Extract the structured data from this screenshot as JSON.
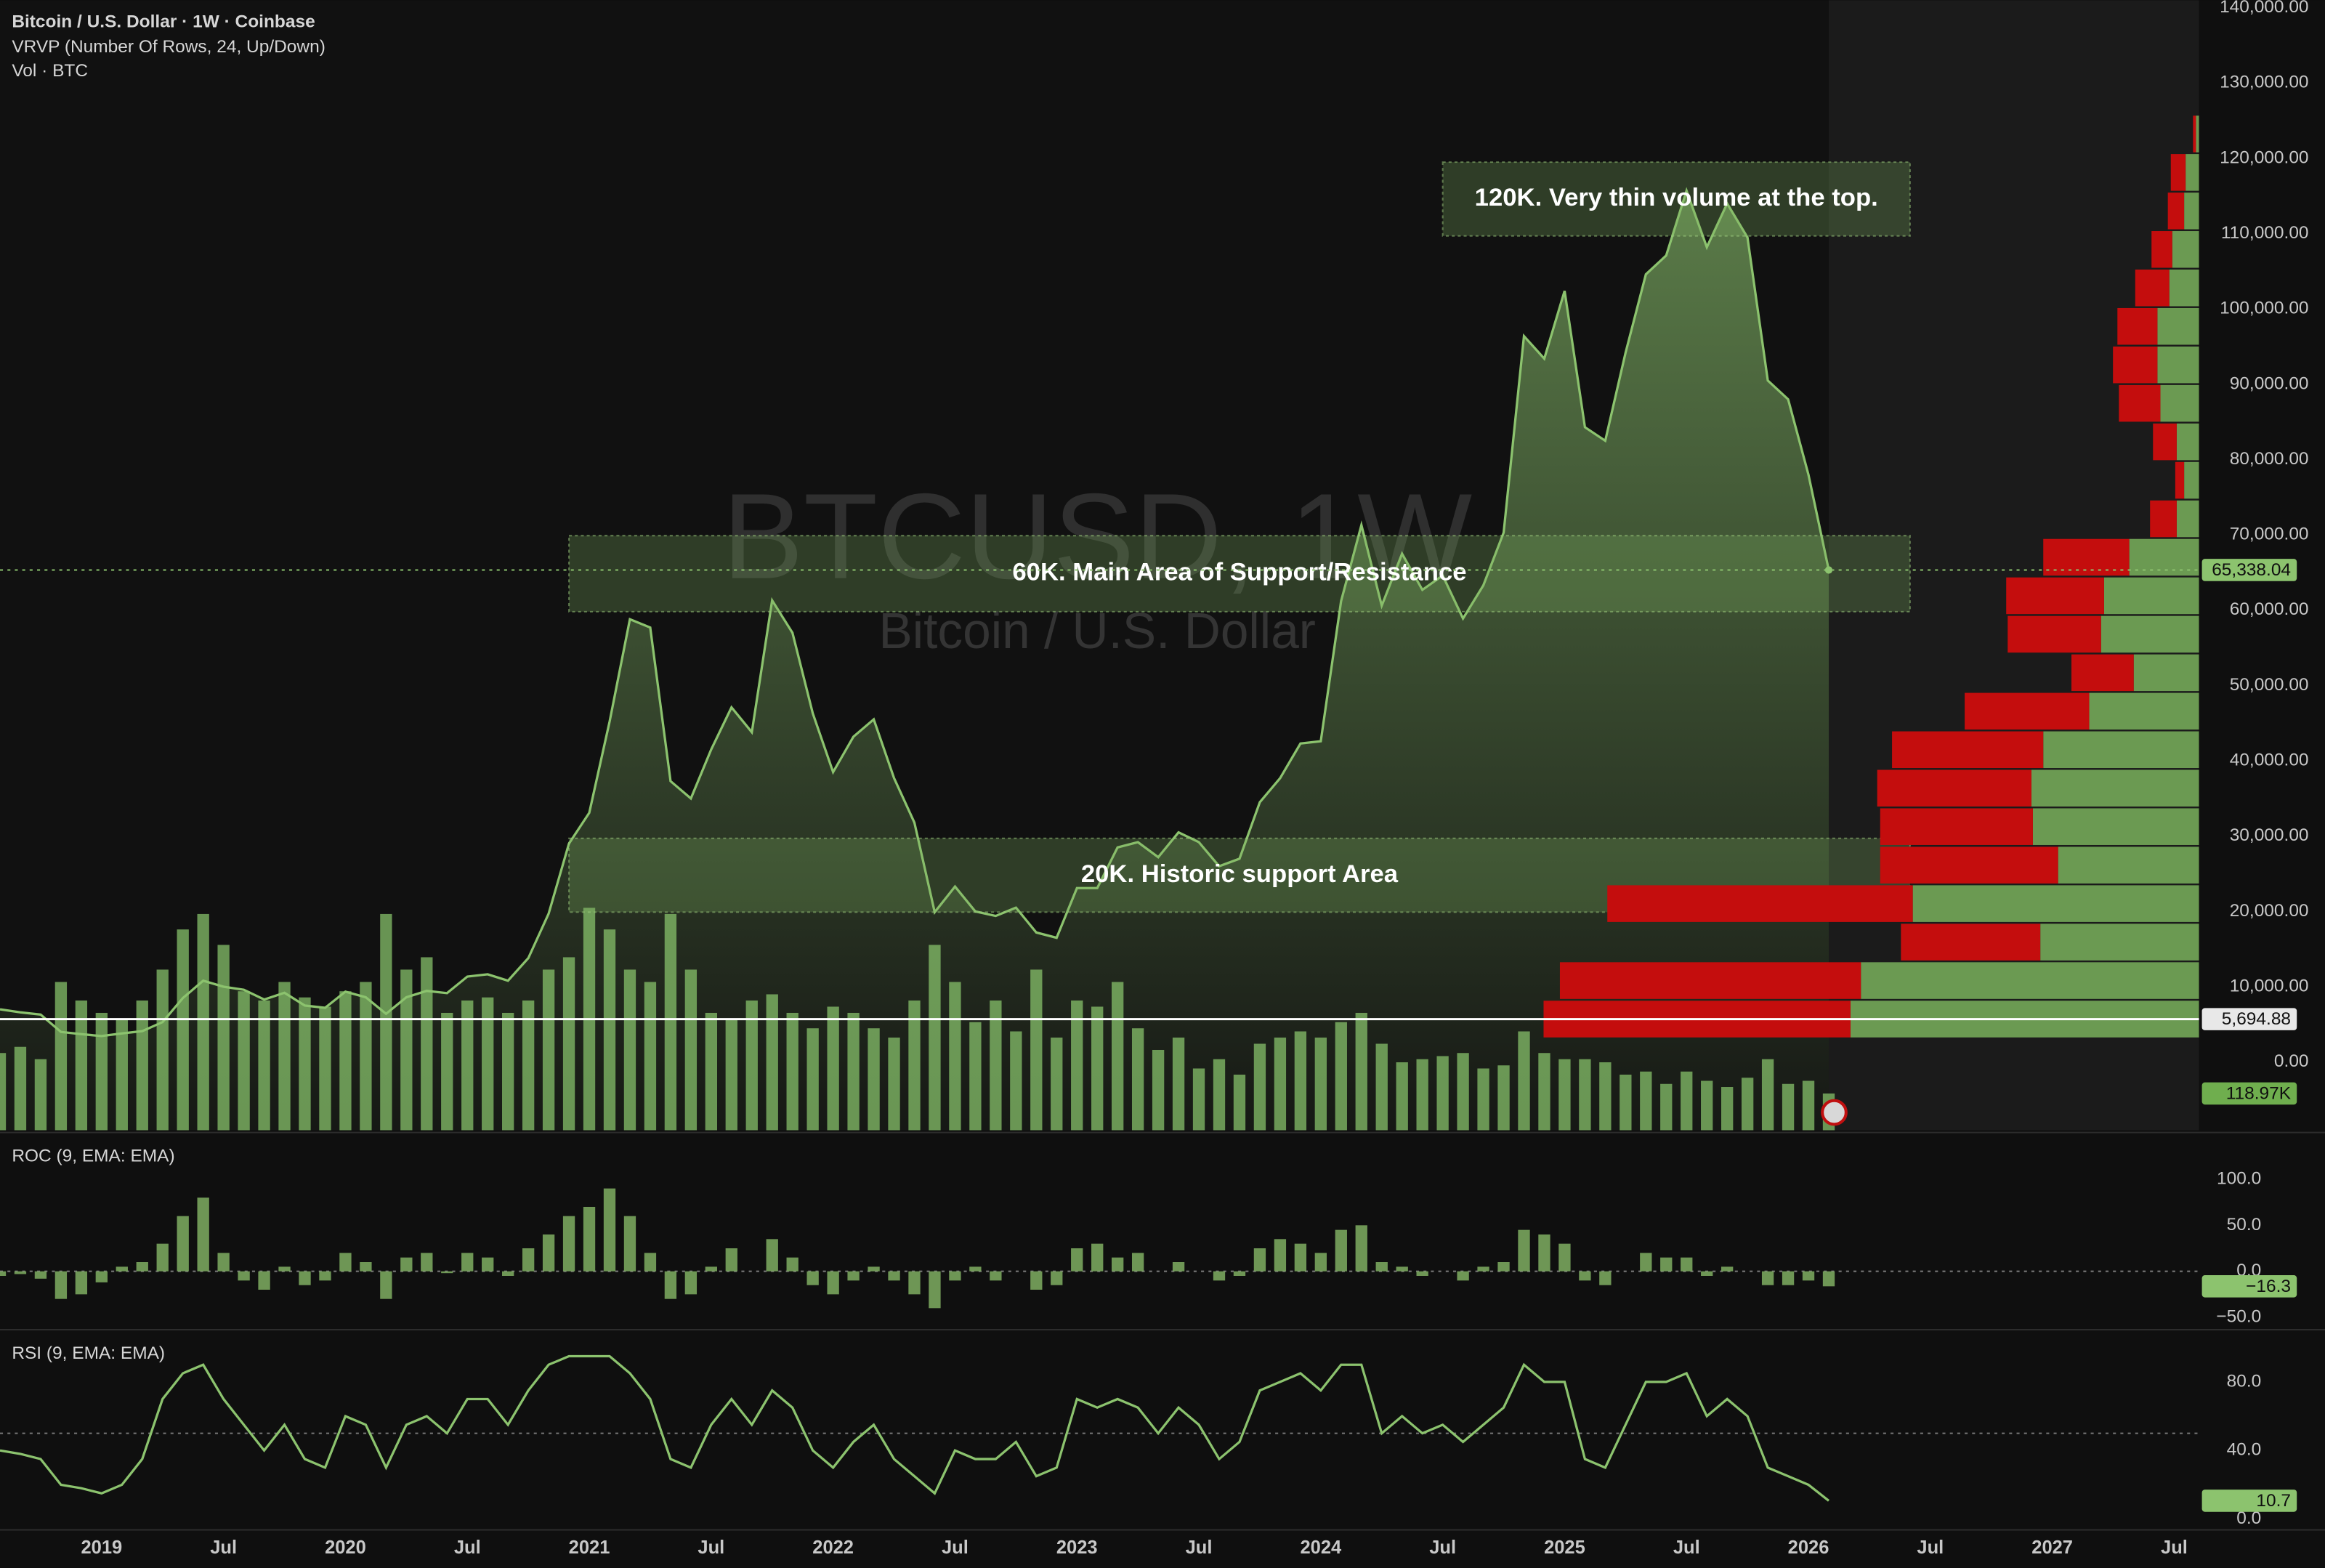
{
  "header": {
    "title": "Bitcoin / U.S. Dollar · 1W · Coinbase",
    "indicators": [
      "VRVP (Number Of Rows, 24, Up/Down)",
      "Vol · BTC"
    ]
  },
  "watermark": {
    "symbol": "BTCUSD, 1W",
    "description": "Bitcoin / U.S. Dollar"
  },
  "chart_data": [
    {
      "type": "area",
      "x": [
        "2018-08",
        "2018-09",
        "2018-10",
        "2018-11",
        "2018-12",
        "2019-01",
        "2019-02",
        "2019-03",
        "2019-04",
        "2019-05",
        "2019-06",
        "2019-07",
        "2019-08",
        "2019-09",
        "2019-10",
        "2019-11",
        "2019-12",
        "2020-01",
        "2020-02",
        "2020-03",
        "2020-04",
        "2020-05",
        "2020-06",
        "2020-07",
        "2020-08",
        "2020-09",
        "2020-10",
        "2020-11",
        "2020-12",
        "2021-01",
        "2021-02",
        "2021-03",
        "2021-04",
        "2021-05",
        "2021-06",
        "2021-07",
        "2021-08",
        "2021-09",
        "2021-10",
        "2021-11",
        "2021-12",
        "2022-01",
        "2022-02",
        "2022-03",
        "2022-04",
        "2022-05",
        "2022-06",
        "2022-07",
        "2022-08",
        "2022-09",
        "2022-10",
        "2022-11",
        "2022-12",
        "2023-01",
        "2023-02",
        "2023-03",
        "2023-04",
        "2023-05",
        "2023-06",
        "2023-07",
        "2023-08",
        "2023-09",
        "2023-10",
        "2023-11",
        "2023-12",
        "2024-01",
        "2024-02",
        "2024-03",
        "2024-04",
        "2024-05",
        "2024-06",
        "2024-07",
        "2024-08",
        "2024-09",
        "2024-10",
        "2024-11",
        "2024-12",
        "2025-01",
        "2025-02",
        "2025-03",
        "2025-04",
        "2025-05",
        "2025-06",
        "2025-07",
        "2025-08",
        "2025-09",
        "2025-10",
        "2025-11",
        "2025-12",
        "2026-01",
        "2026-02"
      ],
      "values": [
        7000,
        6600,
        6300,
        4000,
        3700,
        3450,
        3800,
        4100,
        5300,
        8500,
        10800,
        10000,
        9600,
        8300,
        9200,
        7500,
        7200,
        9350,
        8600,
        6400,
        8600,
        9450,
        9150,
        11350,
        11650,
        10800,
        13800,
        19700,
        29000,
        33100,
        45200,
        58800,
        57700,
        37300,
        35000,
        41500,
        47100,
        43800,
        61300,
        57000,
        46300,
        38500,
        43200,
        45500,
        37700,
        31800,
        19900,
        23300,
        20000,
        19400,
        20500,
        17200,
        16500,
        23100,
        23100,
        28500,
        29200,
        27200,
        30500,
        29200,
        26000,
        27000,
        34500,
        37700,
        42300,
        42600,
        61200,
        71300,
        60600,
        67500,
        62700,
        64600,
        58900,
        63300,
        70300,
        96400,
        93400,
        102400,
        84300,
        82500,
        94200,
        104600,
        107100,
        115700,
        108200,
        114000,
        109500,
        90500,
        88000,
        78000,
        65338.04
      ],
      "last_value_label": "65,338.04",
      "color": "#8cc36e",
      "xlim": [
        "2018-08",
        "2027-08"
      ],
      "xticks": [
        {
          "value": "2019-01",
          "label": "2019"
        },
        {
          "value": "2019-07",
          "label": "Jul"
        },
        {
          "value": "2020-01",
          "label": "2020"
        },
        {
          "value": "2020-07",
          "label": "Jul"
        },
        {
          "value": "2021-01",
          "label": "2021"
        },
        {
          "value": "2021-07",
          "label": "Jul"
        },
        {
          "value": "2022-01",
          "label": "2022"
        },
        {
          "value": "2022-07",
          "label": "Jul"
        },
        {
          "value": "2023-01",
          "label": "2023"
        },
        {
          "value": "2023-07",
          "label": "Jul"
        },
        {
          "value": "2024-01",
          "label": "2024"
        },
        {
          "value": "2024-07",
          "label": "Jul"
        },
        {
          "value": "2025-01",
          "label": "2025"
        },
        {
          "value": "2025-07",
          "label": "Jul"
        },
        {
          "value": "2026-01",
          "label": "2026"
        },
        {
          "value": "2026-07",
          "label": "Jul"
        },
        {
          "value": "2027-01",
          "label": "2027"
        },
        {
          "value": "2027-07",
          "label": "Jul"
        }
      ],
      "ylim": [
        0,
        140000
      ],
      "yticks": [
        {
          "value": 0,
          "label": "0.00"
        },
        {
          "value": 10000,
          "label": "10,000.00"
        },
        {
          "value": 20000,
          "label": "20,000.00"
        },
        {
          "value": 30000,
          "label": "30,000.00"
        },
        {
          "value": 40000,
          "label": "40,000.00"
        },
        {
          "value": 50000,
          "label": "50,000.00"
        },
        {
          "value": 60000,
          "label": "60,000.00"
        },
        {
          "value": 70000,
          "label": "70,000.00"
        },
        {
          "value": 80000,
          "label": "80,000.00"
        },
        {
          "value": 90000,
          "label": "90,000.00"
        },
        {
          "value": 100000,
          "label": "100,000.00"
        },
        {
          "value": 110000,
          "label": "110,000.00"
        },
        {
          "value": 120000,
          "label": "120,000.00"
        },
        {
          "value": 130000,
          "label": "130,000.00"
        },
        {
          "value": 140000,
          "label": "140,000.00"
        }
      ],
      "hline": {
        "value": 5694.88,
        "label": "5,694.88"
      },
      "volume": {
        "color": "#86c06a",
        "last_value_label": "118.97K",
        "values": [
          250000,
          270000,
          230000,
          480000,
          420000,
          380000,
          360000,
          420000,
          520000,
          650000,
          700000,
          600000,
          450000,
          420000,
          480000,
          430000,
          400000,
          450000,
          480000,
          700000,
          520000,
          560000,
          380000,
          420000,
          430000,
          380000,
          420000,
          520000,
          560000,
          720000,
          650000,
          520000,
          480000,
          700000,
          520000,
          380000,
          360000,
          420000,
          440000,
          380000,
          330000,
          400000,
          380000,
          330000,
          300000,
          420000,
          600000,
          480000,
          350000,
          420000,
          320000,
          520000,
          300000,
          420000,
          400000,
          480000,
          330000,
          260000,
          300000,
          200000,
          230000,
          180000,
          280000,
          300000,
          320000,
          300000,
          350000,
          380000,
          280000,
          220000,
          230000,
          240000,
          250000,
          200000,
          210000,
          320000,
          250000,
          230000,
          230000,
          220000,
          180000,
          190000,
          150000,
          190000,
          160000,
          140000,
          170000,
          230000,
          150000,
          160000,
          118970
        ]
      },
      "zones": [
        {
          "label": "120K. Very thin volume at the top.",
          "low": 109700,
          "high": 119500,
          "start": "2024-07",
          "end": "2026-06"
        },
        {
          "label": "60K. Main Area of Support/Resistance",
          "low": 59800,
          "high": 69900,
          "start": "2020-12",
          "end": "2026-06"
        },
        {
          "label": "20K. Historic support Area",
          "low": 19900,
          "high": 29700,
          "start": "2020-12",
          "end": "2026-06"
        }
      ],
      "volume_profile": {
        "bins": [
          3150,
          8260,
          13370,
          18480,
          23590,
          28700,
          33810,
          38920,
          44030,
          49140,
          54250,
          59360,
          64470,
          69580,
          74690,
          79800,
          84910,
          90020,
          95130,
          100240,
          105350,
          110460,
          115570,
          120680,
          125790
        ],
        "up": [
          235,
          228,
          107,
          193,
          95,
          112,
          113,
          105,
          74,
          44,
          66,
          64,
          47,
          15,
          10,
          15,
          26,
          28,
          28,
          20,
          18,
          10,
          9,
          2
        ],
        "down": [
          207,
          203,
          94,
          206,
          120,
          103,
          104,
          102,
          84,
          42,
          63,
          66,
          58,
          18,
          6,
          16,
          28,
          30,
          27,
          23,
          14,
          11,
          10,
          2
        ],
        "up_color": "#6b9a52",
        "down_color": "#c40d0d"
      }
    },
    {
      "type": "bar",
      "title": "ROC (9, EMA: EMA)",
      "color": "#7fae62",
      "values": [
        -5,
        -3,
        -8,
        -30,
        -25,
        -12,
        5,
        10,
        30,
        60,
        80,
        20,
        -10,
        -20,
        5,
        -15,
        -10,
        20,
        10,
        -30,
        15,
        20,
        -2,
        20,
        15,
        -5,
        25,
        40,
        60,
        70,
        90,
        60,
        20,
        -30,
        -25,
        5,
        25,
        0,
        35,
        15,
        -15,
        -25,
        -10,
        5,
        -10,
        -25,
        -40,
        -10,
        5,
        -10,
        0,
        -20,
        -15,
        25,
        30,
        15,
        20,
        0,
        10,
        0,
        -10,
        -5,
        25,
        35,
        30,
        20,
        45,
        50,
        10,
        5,
        -5,
        0,
        -10,
        5,
        10,
        45,
        40,
        30,
        -10,
        -15,
        0,
        20,
        15,
        15,
        -5,
        5,
        0,
        -15,
        -15,
        -10,
        -16.3
      ],
      "last_value_label": "−16.3",
      "ylim": [
        -61,
        150
      ],
      "yticks": [
        {
          "value": 100,
          "label": "100.0"
        },
        {
          "value": 50,
          "label": "50.0"
        },
        {
          "value": 0,
          "label": "0.0"
        },
        {
          "value": -50,
          "label": "−50.0"
        }
      ],
      "reference_line": 0
    },
    {
      "type": "line",
      "title": "RSI (9, EMA: EMA)",
      "color": "#8cc36e",
      "values": [
        40,
        38,
        35,
        20,
        18,
        15,
        20,
        35,
        70,
        85,
        90,
        70,
        55,
        40,
        55,
        35,
        30,
        60,
        55,
        30,
        55,
        60,
        50,
        70,
        70,
        55,
        75,
        90,
        95,
        95,
        95,
        85,
        70,
        35,
        30,
        55,
        70,
        55,
        75,
        65,
        40,
        30,
        45,
        55,
        35,
        25,
        15,
        40,
        35,
        35,
        45,
        25,
        30,
        70,
        65,
        70,
        65,
        50,
        65,
        55,
        35,
        45,
        75,
        80,
        85,
        75,
        90,
        90,
        50,
        60,
        50,
        55,
        45,
        55,
        65,
        90,
        80,
        80,
        35,
        30,
        55,
        80,
        80,
        85,
        60,
        70,
        60,
        30,
        25,
        20,
        10.7
      ],
      "last_value_label": "10.7",
      "ylim": [
        -5,
        110
      ],
      "yticks": [
        {
          "value": 80,
          "label": "80.0"
        },
        {
          "value": 40,
          "label": "40.0"
        },
        {
          "value": 0,
          "label": "0.0"
        }
      ],
      "reference_line": 50
    }
  ]
}
